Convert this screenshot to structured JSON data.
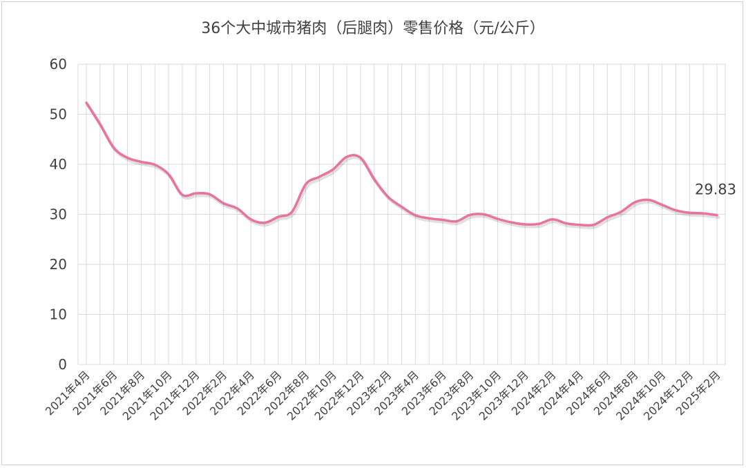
{
  "colors": {
    "line": "#e8739e",
    "grid": "#d9d9d9",
    "text": "#404040",
    "frame": "#cfcfcf"
  },
  "chart_data": {
    "type": "line",
    "title": "36个大中城市猪肉（后腿肉）零售价格（元/公斤）",
    "xlabel": "",
    "ylabel": "",
    "ylim": [
      0,
      60
    ],
    "yticks": [
      0,
      10,
      20,
      30,
      40,
      50,
      60
    ],
    "grid": "on",
    "legend": "none",
    "x_tick_labels": [
      "2021年4月",
      "2021年6月",
      "2021年8月",
      "2021年10月",
      "2021年12月",
      "2022年2月",
      "2022年4月",
      "2022年6月",
      "2022年8月",
      "2022年10月",
      "2022年12月",
      "2023年2月",
      "2023年4月",
      "2023年6月",
      "2023年8月",
      "2023年10月",
      "2023年12月",
      "2024年2月",
      "2024年4月",
      "2024年6月",
      "2024年8月",
      "2024年10月",
      "2024年12月",
      "2025年2月"
    ],
    "x": [
      "2021年4月",
      "2021年5月",
      "2021年6月",
      "2021年7月",
      "2021年8月",
      "2021年9月",
      "2021年10月",
      "2021年11月",
      "2021年12月",
      "2022年1月",
      "2022年2月",
      "2022年3月",
      "2022年4月",
      "2022年5月",
      "2022年6月",
      "2022年7月",
      "2022年8月",
      "2022年9月",
      "2022年10月",
      "2022年11月",
      "2022年12月",
      "2023年1月",
      "2023年2月",
      "2023年3月",
      "2023年4月",
      "2023年5月",
      "2023年6月",
      "2023年7月",
      "2023年8月",
      "2023年9月",
      "2023年10月",
      "2023年11月",
      "2023年12月",
      "2024年1月",
      "2024年2月",
      "2024年3月",
      "2024年4月",
      "2024年5月",
      "2024年6月",
      "2024年7月",
      "2024年8月",
      "2024年9月",
      "2024年10月",
      "2024年11月",
      "2024年12月",
      "2025年1月",
      "2025年2月"
    ],
    "series": [
      {
        "values": [
          52.3,
          48.0,
          43.3,
          41.3,
          40.5,
          39.9,
          38.0,
          33.9,
          34.2,
          34.0,
          32.2,
          31.2,
          29.0,
          28.3,
          29.5,
          30.5,
          36.0,
          37.5,
          39.0,
          41.5,
          41.3,
          37.0,
          33.5,
          31.5,
          29.8,
          29.2,
          28.9,
          28.6,
          29.9,
          30.0,
          29.1,
          28.4,
          28.0,
          28.1,
          29.0,
          28.2,
          27.9,
          27.9,
          29.4,
          30.5,
          32.4,
          32.9,
          31.9,
          30.8,
          30.3,
          30.2,
          29.83
        ]
      }
    ],
    "annotations": [
      {
        "text": "29.83",
        "x": "2025年2月",
        "y": 29.83
      }
    ]
  }
}
